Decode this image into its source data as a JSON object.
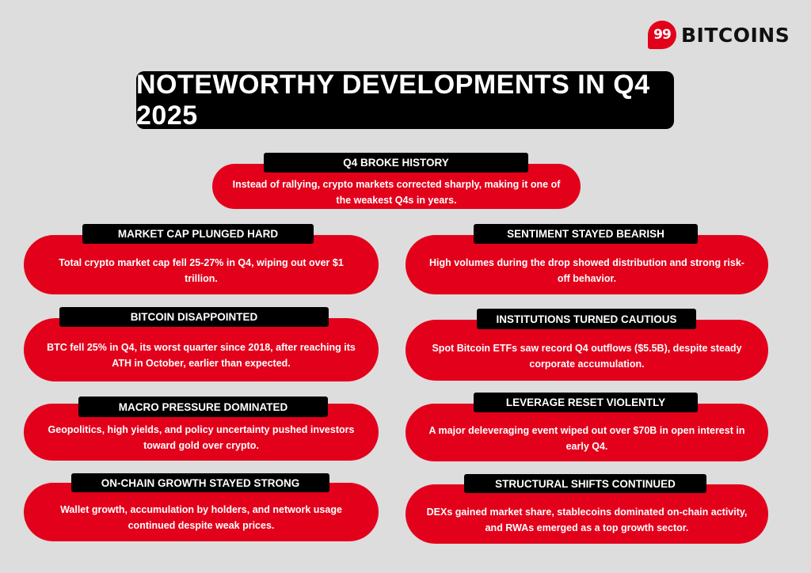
{
  "brand": {
    "logo_mark": "99",
    "logo_text": "BITCOINS",
    "accent": "#e3001b"
  },
  "title": "NOTEWORTHY DEVELOPMENTS IN Q4 2025",
  "cards": [
    {
      "heading": "Q4 BROKE HISTORY",
      "text": "Instead of rallying, crypto markets corrected sharply, making it one of the weakest Q4s in years."
    },
    {
      "heading": "MARKET CAP PLUNGED HARD",
      "text": "Total crypto market cap fell 25-27% in Q4, wiping out over $1 trillion."
    },
    {
      "heading": "SENTIMENT STAYED BEARISH",
      "text": "High volumes during the drop showed distribution and strong risk-off behavior."
    },
    {
      "heading": "BITCOIN DISAPPOINTED",
      "text": "BTC fell 25% in Q4, its worst quarter since 2018, after reaching its ATH in October, earlier than expected."
    },
    {
      "heading": "INSTITUTIONS TURNED CAUTIOUS",
      "text": "Spot Bitcoin ETFs saw record Q4 outflows ($5.5B), despite steady corporate accumulation."
    },
    {
      "heading": "MACRO PRESSURE DOMINATED",
      "text": "Geopolitics, high yields, and policy uncertainty pushed investors toward gold over crypto."
    },
    {
      "heading": "LEVERAGE RESET VIOLENTLY",
      "text": "A major deleveraging event wiped out over $70B in open interest in early Q4."
    },
    {
      "heading": "ON-CHAIN GROWTH STAYED STRONG",
      "text": "Wallet growth, accumulation by holders, and network usage continued despite weak prices."
    },
    {
      "heading": "STRUCTURAL SHIFTS CONTINUED",
      "text": "DEXs gained market share, stablecoins dominated on-chain activity, and RWAs emerged as a top growth sector."
    }
  ]
}
